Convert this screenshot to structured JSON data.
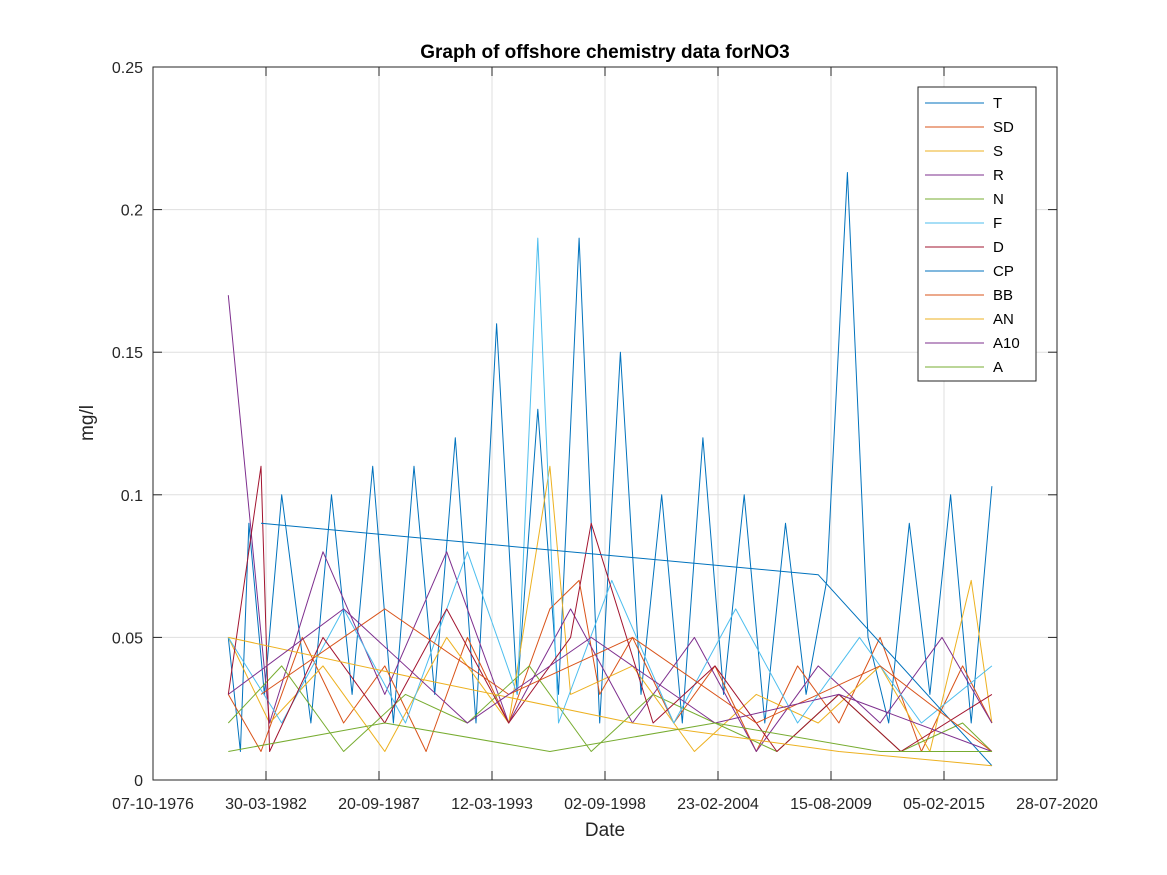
{
  "chart_data": {
    "type": "line",
    "title": "Graph of offshore chemistry data forNO3",
    "xlabel": "Date",
    "ylabel": "mg/l",
    "x_ticks": [
      "07-10-1976",
      "30-03-1982",
      "20-09-1987",
      "12-03-1993",
      "02-09-1998",
      "23-02-2004",
      "15-08-2009",
      "05-02-2015",
      "28-07-2020"
    ],
    "y_ticks": [
      "0",
      "0.05",
      "0.1",
      "0.15",
      "0.2",
      "0.25"
    ],
    "xlim": [
      "07-10-1976",
      "28-07-2020"
    ],
    "ylim": [
      0,
      0.25
    ],
    "grid": true,
    "legend_position": "top-right",
    "series": [
      {
        "name": "T",
        "color": "#0072BD",
        "x": [
          "1980-06-01",
          "1981-01-01",
          "1981-06-01",
          "1982-03-01",
          "1983-01-01",
          "1984-06-01",
          "1985-06-01",
          "1986-06-01",
          "1987-06-01",
          "1988-06-01",
          "1989-06-01",
          "1990-06-01",
          "1991-06-01",
          "1992-06-01",
          "1993-06-01",
          "1994-06-01",
          "1995-06-01",
          "1996-06-01",
          "1997-06-01",
          "1998-06-01",
          "1999-06-01",
          "2000-06-01",
          "2001-06-01",
          "2002-06-01",
          "2003-06-01",
          "2004-06-01",
          "2005-06-01",
          "2006-06-01",
          "2007-06-01",
          "2008-06-01",
          "2009-06-01",
          "2010-06-01",
          "2011-06-01",
          "2012-06-01",
          "2013-06-01",
          "2014-06-01",
          "2015-06-01",
          "2016-06-01",
          "2017-06-01"
        ],
        "y": [
          0.05,
          0.01,
          0.09,
          0.03,
          0.1,
          0.02,
          0.1,
          0.03,
          0.11,
          0.02,
          0.11,
          0.03,
          0.12,
          0.02,
          0.16,
          0.03,
          0.13,
          0.03,
          0.19,
          0.02,
          0.15,
          0.03,
          0.1,
          0.02,
          0.12,
          0.03,
          0.1,
          0.02,
          0.09,
          0.03,
          0.07,
          0.213,
          0.05,
          0.02,
          0.09,
          0.03,
          0.1,
          0.02,
          0.103
        ]
      },
      {
        "name": "SD",
        "color": "#D95319",
        "x": [
          "1980-06-01",
          "1982-01-01",
          "1984-01-01",
          "1986-01-01",
          "1988-01-01",
          "1990-01-01",
          "1992-01-01",
          "1994-01-01",
          "1996-01-01",
          "1997-06-01",
          "1998-06-01",
          "2000-01-01",
          "2002-01-01",
          "2004-01-01",
          "2006-01-01",
          "2008-01-01",
          "2010-01-01",
          "2012-01-01",
          "2014-01-01",
          "2016-01-01",
          "2017-06-01"
        ],
        "y": [
          0.03,
          0.01,
          0.05,
          0.02,
          0.04,
          0.01,
          0.05,
          0.02,
          0.06,
          0.07,
          0.03,
          0.05,
          0.02,
          0.04,
          0.01,
          0.04,
          0.02,
          0.05,
          0.01,
          0.04,
          0.02
        ]
      },
      {
        "name": "S",
        "color": "#EDB120",
        "x": [
          "1980-06-01",
          "1982-06-01",
          "1985-01-01",
          "1988-01-01",
          "1991-01-01",
          "1994-01-01",
          "1996-01-01",
          "1997-01-01",
          "2000-01-01",
          "2003-01-01",
          "2006-01-01",
          "2009-01-01",
          "2012-01-01",
          "2014-06-01",
          "2016-06-01",
          "2017-06-01"
        ],
        "y": [
          0.05,
          0.02,
          0.04,
          0.01,
          0.05,
          0.02,
          0.11,
          0.03,
          0.04,
          0.01,
          0.03,
          0.02,
          0.04,
          0.01,
          0.07,
          0.02
        ]
      },
      {
        "name": "R",
        "color": "#7E2F8E",
        "x": [
          "1980-06-01",
          "1982-06-01",
          "1985-01-01",
          "1988-01-01",
          "1991-01-01",
          "1994-01-01",
          "1997-01-01",
          "2000-01-01",
          "2003-01-01",
          "2006-01-01",
          "2009-01-01",
          "2012-01-01",
          "2015-01-01",
          "2017-06-01"
        ],
        "y": [
          0.17,
          0.02,
          0.08,
          0.03,
          0.08,
          0.02,
          0.06,
          0.02,
          0.05,
          0.01,
          0.04,
          0.02,
          0.05,
          0.02
        ]
      },
      {
        "name": "N",
        "color": "#77AC30",
        "x": [
          "1980-06-01",
          "1983-01-01",
          "1986-01-01",
          "1989-01-01",
          "1992-01-01",
          "1995-01-01",
          "1998-01-01",
          "2001-01-01",
          "2004-01-01",
          "2007-01-01",
          "2010-01-01",
          "2013-01-01",
          "2016-01-01",
          "2017-06-01"
        ],
        "y": [
          0.02,
          0.04,
          0.01,
          0.03,
          0.02,
          0.04,
          0.01,
          0.03,
          0.02,
          0.01,
          0.03,
          0.01,
          0.02,
          0.01
        ]
      },
      {
        "name": "F",
        "color": "#4DBEEE",
        "x": [
          "1980-06-01",
          "1983-01-01",
          "1986-01-01",
          "1989-01-01",
          "1992-01-01",
          "1994-06-01",
          "1995-06-01",
          "1996-06-01",
          "1999-01-01",
          "2002-01-01",
          "2005-01-01",
          "2008-01-01",
          "2011-01-01",
          "2014-01-01",
          "2017-06-01"
        ],
        "y": [
          0.05,
          0.02,
          0.06,
          0.02,
          0.08,
          0.03,
          0.19,
          0.02,
          0.07,
          0.02,
          0.06,
          0.02,
          0.05,
          0.02,
          0.04
        ]
      },
      {
        "name": "D",
        "color": "#A2142F",
        "x": [
          "1980-06-01",
          "1982-01-01",
          "1982-06-01",
          "1985-01-01",
          "1988-01-01",
          "1991-01-01",
          "1994-01-01",
          "1997-01-01",
          "1998-01-01",
          "2001-01-01",
          "2004-01-01",
          "2007-01-01",
          "2010-01-01",
          "2013-01-01",
          "2017-06-01"
        ],
        "y": [
          0.03,
          0.11,
          0.01,
          0.05,
          0.02,
          0.06,
          0.02,
          0.05,
          0.09,
          0.02,
          0.04,
          0.01,
          0.03,
          0.01,
          0.03
        ]
      },
      {
        "name": "CP",
        "color": "#0072BD",
        "x": [
          "1982-01-01",
          "2009-01-01",
          "2017-06-01"
        ],
        "y": [
          0.09,
          0.072,
          0.005
        ]
      },
      {
        "name": "BB",
        "color": "#D95319",
        "x": [
          "1982-01-01",
          "1988-01-01",
          "1994-01-01",
          "2000-01-01",
          "2006-01-01",
          "2012-01-01",
          "2017-06-01"
        ],
        "y": [
          0.03,
          0.06,
          0.03,
          0.05,
          0.02,
          0.04,
          0.01
        ]
      },
      {
        "name": "AN",
        "color": "#EDB120",
        "x": [
          "1980-06-01",
          "1990-01-01",
          "2000-01-01",
          "2010-01-01",
          "2017-06-01"
        ],
        "y": [
          0.05,
          0.035,
          0.02,
          0.01,
          0.005
        ]
      },
      {
        "name": "A10",
        "color": "#7E2F8E",
        "x": [
          "1980-06-01",
          "1986-01-01",
          "1992-01-01",
          "1998-01-01",
          "2004-01-01",
          "2010-01-01",
          "2017-06-01"
        ],
        "y": [
          0.03,
          0.06,
          0.02,
          0.05,
          0.02,
          0.03,
          0.01
        ]
      },
      {
        "name": "A",
        "color": "#77AC30",
        "x": [
          "1980-06-01",
          "1988-01-01",
          "1996-01-01",
          "2004-01-01",
          "2012-01-01",
          "2017-06-01"
        ],
        "y": [
          0.01,
          0.02,
          0.01,
          0.02,
          0.01,
          0.01
        ]
      }
    ]
  }
}
